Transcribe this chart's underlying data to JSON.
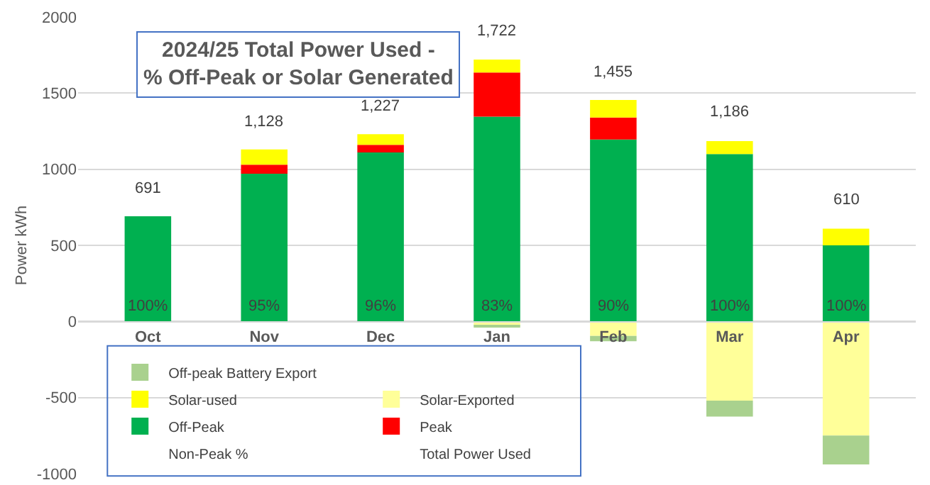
{
  "chart_data": {
    "type": "bar",
    "title": "2024/25 Total Power Used -\n% Off-Peak or Solar Generated",
    "ylabel": "Power kWh",
    "categories": [
      "Oct",
      "Nov",
      "Dec",
      "Jan",
      "Feb",
      "Mar",
      "Apr"
    ],
    "stacked": true,
    "series": [
      {
        "name": "Off-Peak",
        "color": "#00b050",
        "values": [
          691,
          970,
          1110,
          1345,
          1195,
          1100,
          500
        ]
      },
      {
        "name": "Peak",
        "color": "#ff0000",
        "values": [
          null,
          60,
          50,
          290,
          145,
          null,
          null
        ]
      },
      {
        "name": "Solar-used",
        "color": "#ffff00",
        "values": [
          null,
          100,
          70,
          85,
          115,
          85,
          110
        ]
      },
      {
        "name": "Solar-Exported",
        "color": "#ffff99",
        "values": [
          null,
          null,
          null,
          -25,
          -95,
          -520,
          -750
        ]
      },
      {
        "name": "Off-peak Battery Export",
        "color": "#a9d18e",
        "values": [
          null,
          null,
          null,
          -10,
          -35,
          -105,
          -190
        ]
      }
    ],
    "annotations": [
      "Total Power Used",
      "Non-Peak %",
      {
        "text": "691",
        "x": "Oct",
        "y": 691
      },
      {
        "text": "1,128",
        "x": "Nov",
        "y": 1128
      },
      {
        "text": "1,227",
        "x": "Dec",
        "y": 1227
      },
      {
        "text": "1,722",
        "x": "Jan",
        "y": 1722
      },
      {
        "text": "1,455",
        "x": "Feb",
        "y": 1455
      },
      {
        "text": "1,186",
        "x": "Mar",
        "y": 1186
      },
      {
        "text": "610",
        "x": "Apr",
        "y": 610
      },
      {
        "text": "100%",
        "x": "Oct",
        "y": 0
      },
      {
        "text": "95%",
        "x": "Nov",
        "y": 0
      },
      {
        "text": "96%",
        "x": "Dec",
        "y": 0
      },
      {
        "text": "83%",
        "x": "Jan",
        "y": 0
      },
      {
        "text": "90%",
        "x": "Feb",
        "y": 0
      },
      {
        "text": "100%",
        "x": "Mar",
        "y": 0
      },
      {
        "text": "100%",
        "x": "Apr",
        "y": 0
      }
    ],
    "ylim": [
      -1000,
      2000
    ],
    "yticks": [
      -1000,
      -500,
      0,
      500,
      1000,
      1500,
      2000
    ],
    "grid": "y",
    "legend": "bottom left"
  }
}
